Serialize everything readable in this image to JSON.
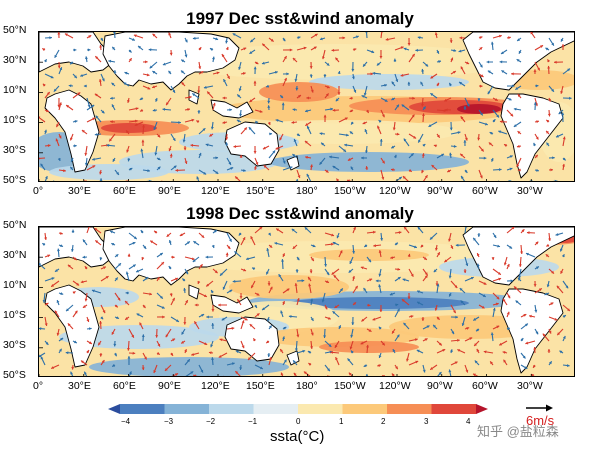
{
  "panels": [
    {
      "title": "1997 Dec sst&wind anomaly"
    },
    {
      "title": "1998 Dec sst&wind anomaly"
    }
  ],
  "lat_labels": [
    "50°N",
    "30°N",
    "10°N",
    "10°S",
    "30°S",
    "50°S"
  ],
  "lon_labels": [
    "0°",
    "30°E",
    "60°E",
    "90°E",
    "120°E",
    "150°E",
    "180°",
    "150°W",
    "120°W",
    "90°W",
    "60°W",
    "30°W"
  ],
  "colorbar": {
    "title": "ssta(°C)",
    "ticks": [
      "−4",
      "−3",
      "−2",
      "−1",
      "0",
      "1",
      "2",
      "3",
      "4"
    ],
    "colors": [
      "#2b4d9e",
      "#4c7fbf",
      "#85b3d7",
      "#bcd9eb",
      "#e5eef3",
      "#fbe9b0",
      "#fcc97a",
      "#f68e55",
      "#e0473a",
      "#b5142b"
    ]
  },
  "reference_vector": {
    "label": "6m/s",
    "color": "#d51f1f"
  },
  "watermark": "知乎 @盐粒森"
}
